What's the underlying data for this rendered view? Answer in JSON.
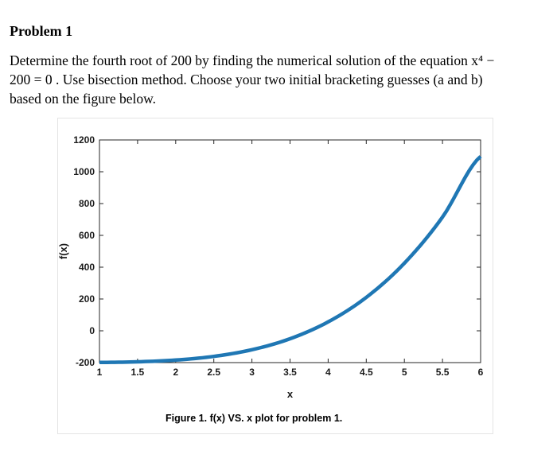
{
  "problem": {
    "title": "Problem 1",
    "lines": [
      "Determine the fourth root of 200 by finding the numerical solution of the equation x⁴ −",
      "200 = 0 . Use bisection method. Choose your two initial bracketing guesses (a and b)",
      "based on the figure below."
    ]
  },
  "figure": {
    "caption": "Figure 1. f(x) VS. x plot for problem 1."
  },
  "chart_data": {
    "type": "line",
    "function": "x^4 - 200",
    "x": [
      1,
      1.5,
      2,
      2.5,
      3,
      3.5,
      4,
      4.5,
      5,
      5.5,
      6
    ],
    "y": [
      -199,
      -194.94,
      -184,
      -160.94,
      -119,
      -49.94,
      56,
      210.06,
      425,
      715.06,
      1096
    ],
    "xlabel": "x",
    "ylabel": "f(x)",
    "xlim": [
      1,
      6
    ],
    "ylim": [
      -200,
      1200
    ],
    "xticks": [
      "1",
      "1.5",
      "2",
      "2.5",
      "3",
      "3.5",
      "4",
      "4.5",
      "5",
      "5.5",
      "6"
    ],
    "yticks": [
      "-200",
      "0",
      "200",
      "400",
      "600",
      "800",
      "1000",
      "1200"
    ],
    "grid": false,
    "line_color": "#1f77b4"
  }
}
